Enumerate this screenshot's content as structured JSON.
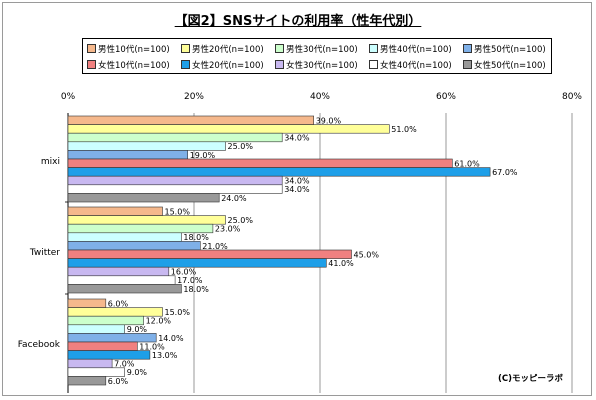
{
  "chart_data": {
    "type": "bar",
    "orientation": "horizontal",
    "title": "【図2】SNSサイトの利用率（性年代別）",
    "categories": [
      "mixi",
      "Twitter",
      "Facebook"
    ],
    "xlim": [
      0,
      80
    ],
    "xticks": [
      "0%",
      "20%",
      "40%",
      "60%",
      "80%"
    ],
    "tick_values": [
      0,
      20,
      40,
      60,
      80
    ],
    "grid": true,
    "legend_position": "top",
    "series": [
      {
        "name": "男性10代(n=100)",
        "color": "#f5b88c",
        "values": [
          39.0,
          15.0,
          6.0
        ],
        "labels": [
          "39.0%",
          "15.0%",
          "6.0%"
        ]
      },
      {
        "name": "男性20代(n=100)",
        "color": "#ffff99",
        "values": [
          51.0,
          25.0,
          15.0
        ],
        "labels": [
          "51.0%",
          "25.0%",
          "15.0%"
        ]
      },
      {
        "name": "男性30代(n=100)",
        "color": "#ccffcc",
        "values": [
          34.0,
          23.0,
          12.0
        ],
        "labels": [
          "34.0%",
          "23.0%",
          "12.0%"
        ]
      },
      {
        "name": "男性40代(n=100)",
        "color": "#ccffff",
        "values": [
          25.0,
          18.0,
          9.0
        ],
        "labels": [
          "25.0%",
          "18.0%",
          "9.0%"
        ]
      },
      {
        "name": "男性50代(n=100)",
        "color": "#7fb0e8",
        "values": [
          19.0,
          21.0,
          14.0
        ],
        "labels": [
          "19.0%",
          "21.0%",
          "14.0%"
        ]
      },
      {
        "name": "女性10代(n=100)",
        "color": "#f08080",
        "values": [
          61.0,
          45.0,
          11.0
        ],
        "labels": [
          "61.0%",
          "45.0%",
          "11.0%"
        ]
      },
      {
        "name": "女性20代(n=100)",
        "color": "#1e9fe8",
        "values": [
          67.0,
          41.0,
          13.0
        ],
        "labels": [
          "67.0%",
          "41.0%",
          "13.0%"
        ]
      },
      {
        "name": "女性30代(n=100)",
        "color": "#c8b8f0",
        "values": [
          34.0,
          16.0,
          7.0
        ],
        "labels": [
          "34.0%",
          "16.0%",
          "7.0%"
        ]
      },
      {
        "name": "女性40代(n=100)",
        "color": "#ffffff",
        "values": [
          34.0,
          17.0,
          9.0
        ],
        "labels": [
          "34.0%",
          "17.0%",
          "9.0%"
        ]
      },
      {
        "name": "女性50代(n=100)",
        "color": "#999999",
        "values": [
          24.0,
          18.0,
          6.0
        ],
        "labels": [
          "24.0%",
          "18.0%",
          "6.0%"
        ]
      }
    ]
  },
  "credit": "(C)モッピーラボ"
}
